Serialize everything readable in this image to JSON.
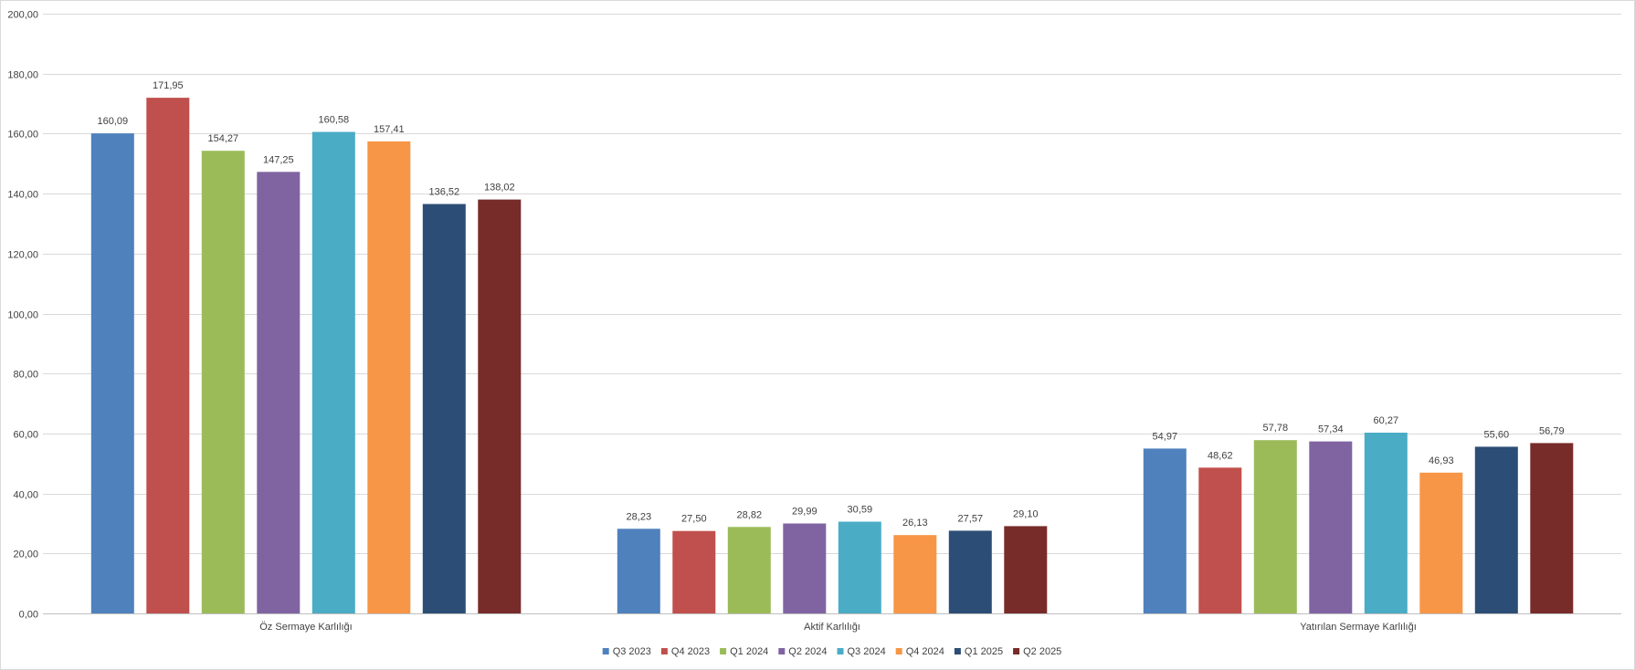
{
  "chart_data": {
    "type": "bar",
    "categories": [
      "Öz Sermaye Karlılığı",
      "Aktif Karlılığı",
      "Yatırılan Sermaye Karlılığı"
    ],
    "series": [
      {
        "name": "Q3 2023",
        "color": "#4F81BD",
        "values": [
          160.09,
          28.23,
          54.97
        ],
        "labels": [
          "160,09",
          "28,23",
          "54,97"
        ]
      },
      {
        "name": "Q4 2023",
        "color": "#C0504D",
        "values": [
          171.95,
          27.5,
          48.62
        ],
        "labels": [
          "171,95",
          "27,50",
          "48,62"
        ]
      },
      {
        "name": "Q1 2024",
        "color": "#9BBB59",
        "values": [
          154.27,
          28.82,
          57.78
        ],
        "labels": [
          "154,27",
          "28,82",
          "57,78"
        ]
      },
      {
        "name": "Q2 2024",
        "color": "#8064A2",
        "values": [
          147.25,
          29.99,
          57.34
        ],
        "labels": [
          "147,25",
          "29,99",
          "57,34"
        ]
      },
      {
        "name": "Q3 2024",
        "color": "#4BACC6",
        "values": [
          160.58,
          30.59,
          60.27
        ],
        "labels": [
          "160,58",
          "30,59",
          "60,27"
        ]
      },
      {
        "name": "Q4 2024",
        "color": "#F79646",
        "values": [
          157.41,
          26.13,
          46.93
        ],
        "labels": [
          "157,41",
          "26,13",
          "46,93"
        ]
      },
      {
        "name": "Q1 2025",
        "color": "#2C4D75",
        "values": [
          136.52,
          27.57,
          55.6
        ],
        "labels": [
          "136,52",
          "27,57",
          "55,60"
        ]
      },
      {
        "name": "Q2 2025",
        "color": "#772C2A",
        "values": [
          138.02,
          29.1,
          56.79
        ],
        "labels": [
          "138,02",
          "29,10",
          "56,79"
        ]
      }
    ],
    "ylim": [
      0,
      200
    ],
    "yticks": [
      "0,00",
      "20,00",
      "40,00",
      "60,00",
      "80,00",
      "100,00",
      "120,00",
      "140,00",
      "160,00",
      "180,00",
      "200,00"
    ],
    "grid": true,
    "legend": "bottom-center",
    "title": "",
    "xlabel": "",
    "ylabel": ""
  }
}
